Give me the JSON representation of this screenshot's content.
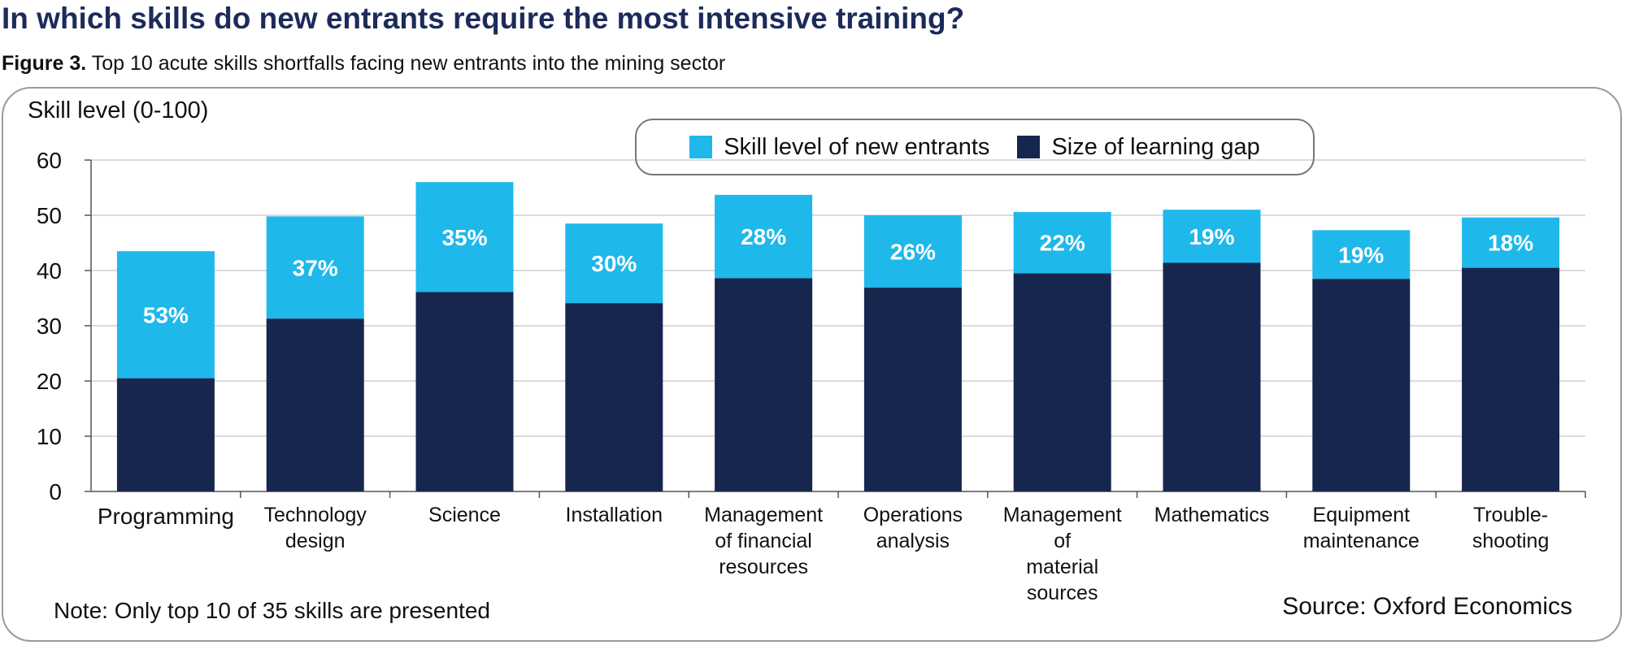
{
  "heading": "In which skills do new entrants require the most intensive training?",
  "subtitle": {
    "figure_label": "Figure 3.",
    "text": "Top 10 acute skills shortfalls facing new entrants into the mining sector"
  },
  "note": "Note: Only top 10 of 35 skills are presented",
  "source": "Source: Oxford Economics",
  "colors": {
    "entrants": "#1fb8ea",
    "gap": "#17264e",
    "grid": "#cfcfcf",
    "axis": "#555555"
  },
  "chart_data": {
    "type": "bar",
    "stacked": true,
    "ylabel": "Skill level (0-100)",
    "ylim": [
      0,
      60
    ],
    "yticks": [
      0,
      10,
      20,
      30,
      40,
      50,
      60
    ],
    "grid": true,
    "legend_position": "top-center",
    "categories": [
      "Programming",
      "Technology design",
      "Science",
      "Installation",
      "Management of financial resources",
      "Operations analysis",
      "Management of material sources",
      "Mathematics",
      "Equipment maintenance",
      "Trouble-shooting"
    ],
    "category_lines": [
      [
        "Programming"
      ],
      [
        "Technology",
        "design"
      ],
      [
        "Science"
      ],
      [
        "Installation"
      ],
      [
        "Management",
        "of financial",
        "resources"
      ],
      [
        "Operations",
        "analysis"
      ],
      [
        "Management",
        "of",
        "material",
        "sources"
      ],
      [
        "Mathematics"
      ],
      [
        "Equipment",
        "maintenance"
      ],
      [
        "Trouble-",
        "shooting"
      ]
    ],
    "series": [
      {
        "name": "Size of learning gap",
        "values": [
          20.5,
          31.3,
          36.1,
          34.1,
          38.6,
          36.9,
          39.5,
          41.4,
          38.5,
          40.5
        ]
      },
      {
        "name": "Skill level of new entrants",
        "values": [
          23.0,
          18.5,
          19.9,
          14.4,
          15.1,
          13.1,
          11.1,
          9.6,
          8.8,
          9.1
        ]
      }
    ],
    "data_labels": [
      "53%",
      "37%",
      "35%",
      "30%",
      "28%",
      "26%",
      "22%",
      "19%",
      "19%",
      "18%"
    ]
  }
}
